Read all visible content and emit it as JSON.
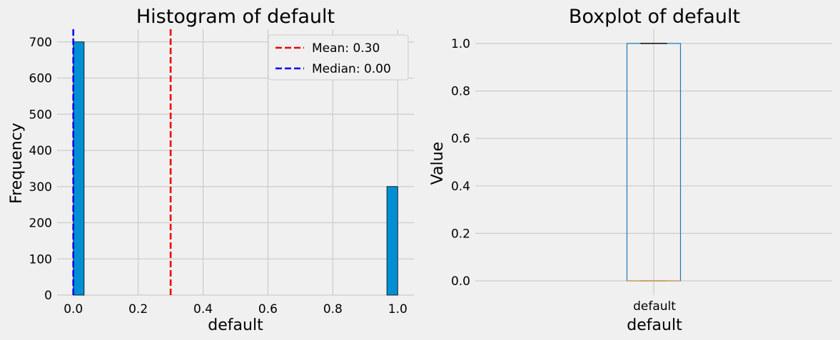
{
  "chart_data": [
    {
      "type": "bar",
      "title": "Histogram of default",
      "xlabel": "default",
      "ylabel": "Frequency",
      "xlim": [
        -0.05,
        1.05
      ],
      "ylim": [
        0,
        735
      ],
      "xticks": [
        "0.0",
        "0.2",
        "0.4",
        "0.6",
        "0.8",
        "1.0"
      ],
      "yticks": [
        "0",
        "100",
        "200",
        "300",
        "400",
        "500",
        "600",
        "700"
      ],
      "bins": [
        {
          "x0": 0.0,
          "x1": 0.0333,
          "count": 700
        },
        {
          "x0": 0.9667,
          "x1": 1.0,
          "count": 300
        }
      ],
      "bar_color": "#008fd5",
      "reference_lines": [
        {
          "label": "Mean: 0.30",
          "value": 0.3,
          "color": "#ee0000"
        },
        {
          "label": "Median: 0.00",
          "value": 0.0,
          "color": "#0000ee"
        }
      ],
      "legend_position": "top-right",
      "grid": true
    },
    {
      "type": "box",
      "title": "Boxplot of default",
      "xlabel": "default",
      "ylabel": "Value",
      "category": "default",
      "ylim": [
        -0.06,
        1.06
      ],
      "yticks": [
        "0.0",
        "0.2",
        "0.4",
        "0.6",
        "0.8",
        "1.0"
      ],
      "stats": {
        "min": 0,
        "q1": 0,
        "median": 0,
        "q3": 1,
        "max": 1
      },
      "box_color": "#1f77b4",
      "median_color": "#d8a868",
      "grid": true
    }
  ]
}
